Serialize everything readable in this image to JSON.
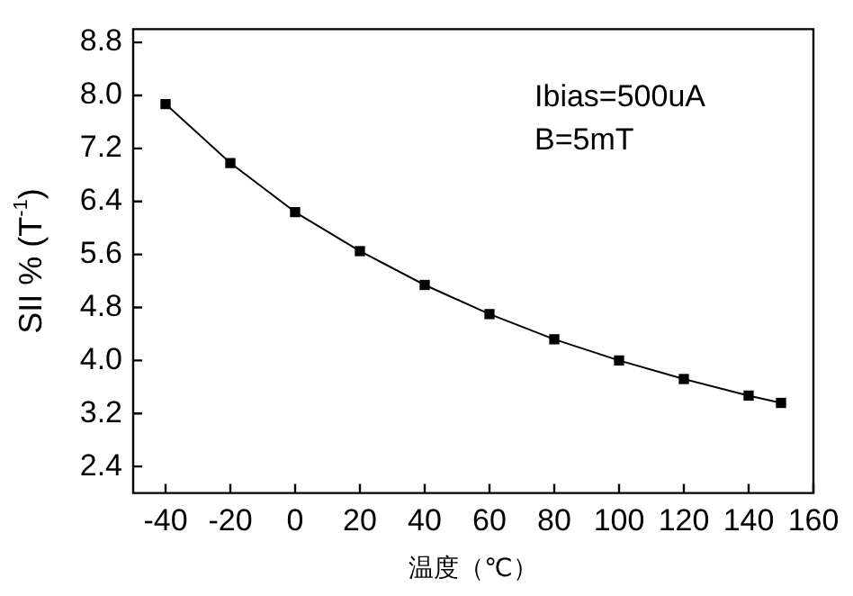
{
  "chart_data": {
    "type": "line",
    "xlabel": "温度（℃）",
    "ylabel": "SII % (T$^{-1}$)",
    "x": [
      -40,
      -20,
      0,
      20,
      40,
      60,
      80,
      100,
      120,
      140,
      150
    ],
    "series": [
      {
        "color": "#000000",
        "values": [
          7.87,
          6.98,
          6.24,
          5.65,
          5.14,
          4.7,
          4.32,
          4.0,
          3.72,
          3.47,
          3.36
        ]
      }
    ],
    "xlim": [
      -50,
      160
    ],
    "xticks": [
      -40,
      -20,
      0,
      20,
      40,
      60,
      80,
      100,
      120,
      140,
      160
    ],
    "ylim": [
      2.0,
      9.0
    ],
    "yticks": [
      2.4,
      3.2,
      {
        "value": 4,
        "label": "4.0"
      },
      4.8,
      5.6,
      6.4,
      7.2,
      {
        "value": 8,
        "label": "8.0"
      },
      8.8
    ],
    "marker": "square",
    "line_style": "solid",
    "grid": false,
    "legend": false,
    "annotations": [
      "Ibias=500uA",
      "B=5mT"
    ]
  }
}
